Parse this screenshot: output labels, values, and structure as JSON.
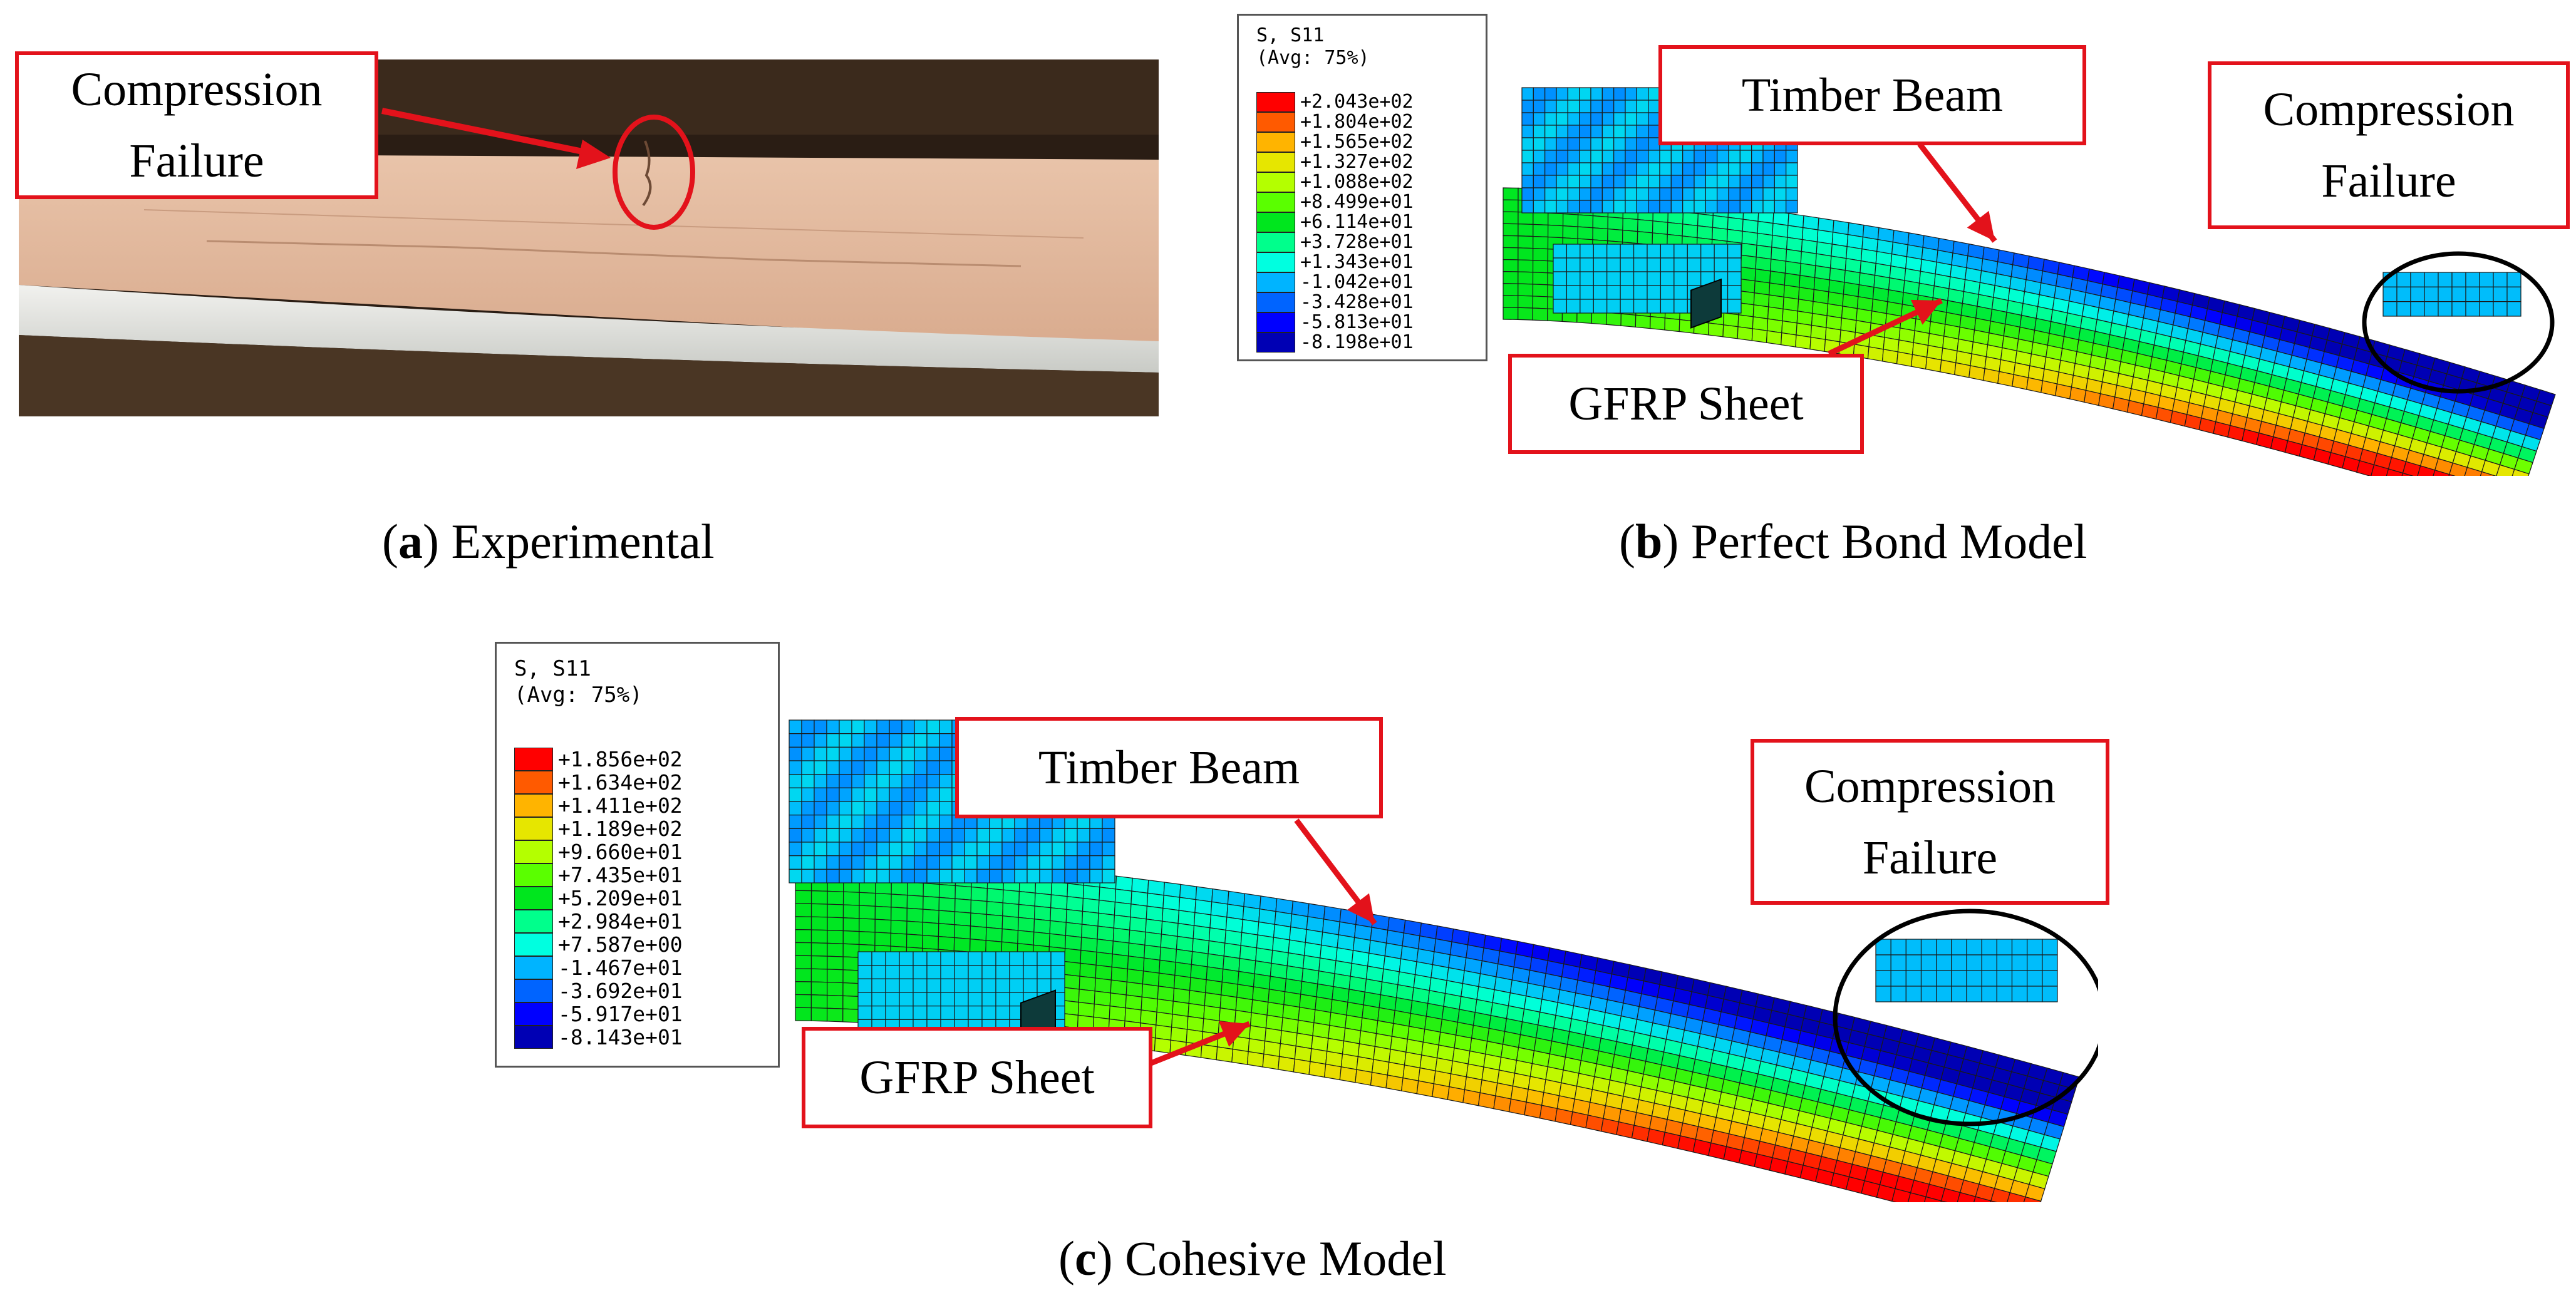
{
  "panel_a": {
    "caption_label": "a",
    "caption_text": "Experimental",
    "callout": [
      "Compression",
      "Failure"
    ]
  },
  "panel_b": {
    "caption_label": "b",
    "caption_text": "Perfect Bond Model",
    "callout_beam": "Timber Beam",
    "callout_sheet": "GFRP Sheet",
    "callout_failure": [
      "Compression",
      "Failure"
    ],
    "legend": {
      "title1": "S, S11",
      "title2": "(Avg: 75%)",
      "values": [
        "+2.043e+02",
        "+1.804e+02",
        "+1.565e+02",
        "+1.327e+02",
        "+1.088e+02",
        "+8.499e+01",
        "+6.114e+01",
        "+3.728e+01",
        "+1.343e+01",
        "-1.042e+01",
        "-3.428e+01",
        "-5.813e+01",
        "-8.198e+01"
      ]
    }
  },
  "panel_c": {
    "caption_label": "c",
    "caption_text": "Cohesive Model",
    "callout_beam": "Timber Beam",
    "callout_sheet": "GFRP Sheet",
    "callout_failure": [
      "Compression",
      "Failure"
    ],
    "legend": {
      "title1": "S, S11",
      "title2": "(Avg: 75%)",
      "values": [
        "+1.856e+02",
        "+1.634e+02",
        "+1.411e+02",
        "+1.189e+02",
        "+9.660e+01",
        "+7.435e+01",
        "+5.209e+01",
        "+2.984e+01",
        "+7.587e+00",
        "-1.467e+01",
        "-3.692e+01",
        "-5.917e+01",
        "-8.143e+01"
      ]
    }
  },
  "colors": {
    "callout_border": "#e3121b",
    "arrow": "#e3121b",
    "contour_scale": [
      "#ff0000",
      "#ff5a00",
      "#ffb400",
      "#e6e600",
      "#b4ff00",
      "#5aff00",
      "#00e61e",
      "#00ff8c",
      "#00ffe0",
      "#00b4ff",
      "#0064ff",
      "#0000ff",
      "#0000b4"
    ]
  }
}
